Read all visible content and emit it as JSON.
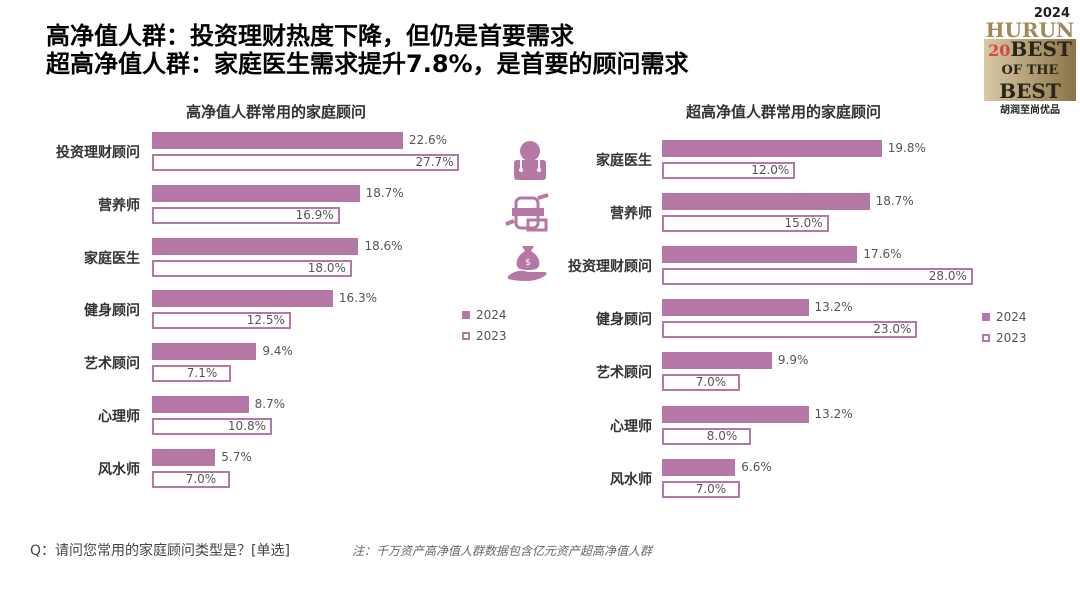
{
  "title_line1": "高净值人群：投资理财热度下降，但仍是首要需求",
  "title_line2": "超高净值人群：家庭医生需求提升7.8%，是首要的顾问需求",
  "logo": {
    "year": "2024",
    "brand": "HURUN",
    "line1": "BEST",
    "line2": "OF THE",
    "line3": "BEST",
    "num": "20",
    "cn": "胡润至尚优品"
  },
  "colors": {
    "series_2024": "#b578a6",
    "series_2023_border": "#b578a6"
  },
  "chart_data": [
    {
      "type": "bar",
      "orientation": "horizontal",
      "title": "高净值人群常用的家庭顾问",
      "categories": [
        "投资理财顾问",
        "营养师",
        "家庭医生",
        "健身顾问",
        "艺术顾问",
        "心理师",
        "风水师"
      ],
      "series": [
        {
          "name": "2024",
          "values": [
            22.6,
            18.7,
            18.6,
            16.3,
            9.4,
            8.7,
            5.7
          ]
        },
        {
          "name": "2023",
          "values": [
            27.7,
            16.9,
            18.0,
            12.5,
            7.1,
            10.8,
            7.0
          ]
        }
      ],
      "unit": "%",
      "legend": "right"
    },
    {
      "type": "bar",
      "orientation": "horizontal",
      "title": "超高净值人群常用的家庭顾问",
      "categories": [
        "家庭医生",
        "营养师",
        "投资理财顾问",
        "健身顾问",
        "艺术顾问",
        "心理师",
        "风水师"
      ],
      "series": [
        {
          "name": "2024",
          "values": [
            19.8,
            18.7,
            17.6,
            13.2,
            9.9,
            13.2,
            6.6
          ]
        },
        {
          "name": "2023",
          "values": [
            12.0,
            15.0,
            28.0,
            23.0,
            7.0,
            8.0,
            7.0
          ]
        }
      ],
      "unit": "%",
      "legend": "right",
      "icons": [
        "doctor-icon",
        "nutrition-icon",
        "money-bag-hand-icon"
      ]
    }
  ],
  "footer": {
    "question": "Q：请问您常用的家庭顾问类型是？[单选]",
    "note": "注：千万资产高净值人群数据包含亿元资产超高净值人群"
  }
}
